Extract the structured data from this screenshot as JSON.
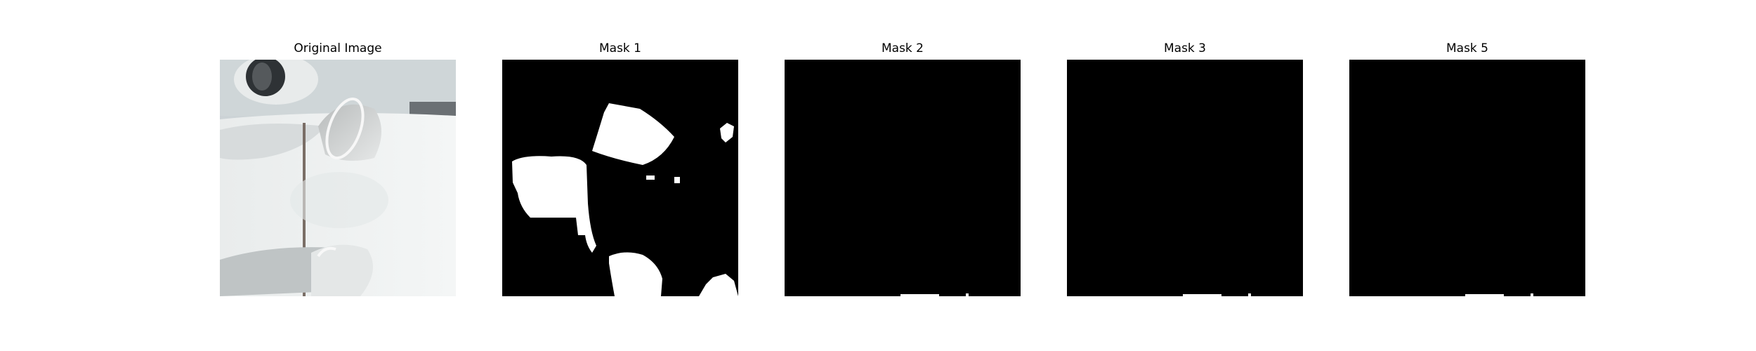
{
  "panels": [
    {
      "title": "Original Image",
      "image": "photo-white-surfaces-with-cups"
    },
    {
      "title": "Mask 1",
      "image": "binary-mask-white-regions"
    },
    {
      "title": "Mask 2",
      "image": "binary-mask-mostly-black"
    },
    {
      "title": "Mask 3",
      "image": "binary-mask-mostly-black"
    },
    {
      "title": "Mask 5",
      "image": "binary-mask-mostly-black"
    }
  ],
  "colors": {
    "background": "#ffffff",
    "mask_fg": "#ffffff",
    "mask_bg": "#000000"
  }
}
